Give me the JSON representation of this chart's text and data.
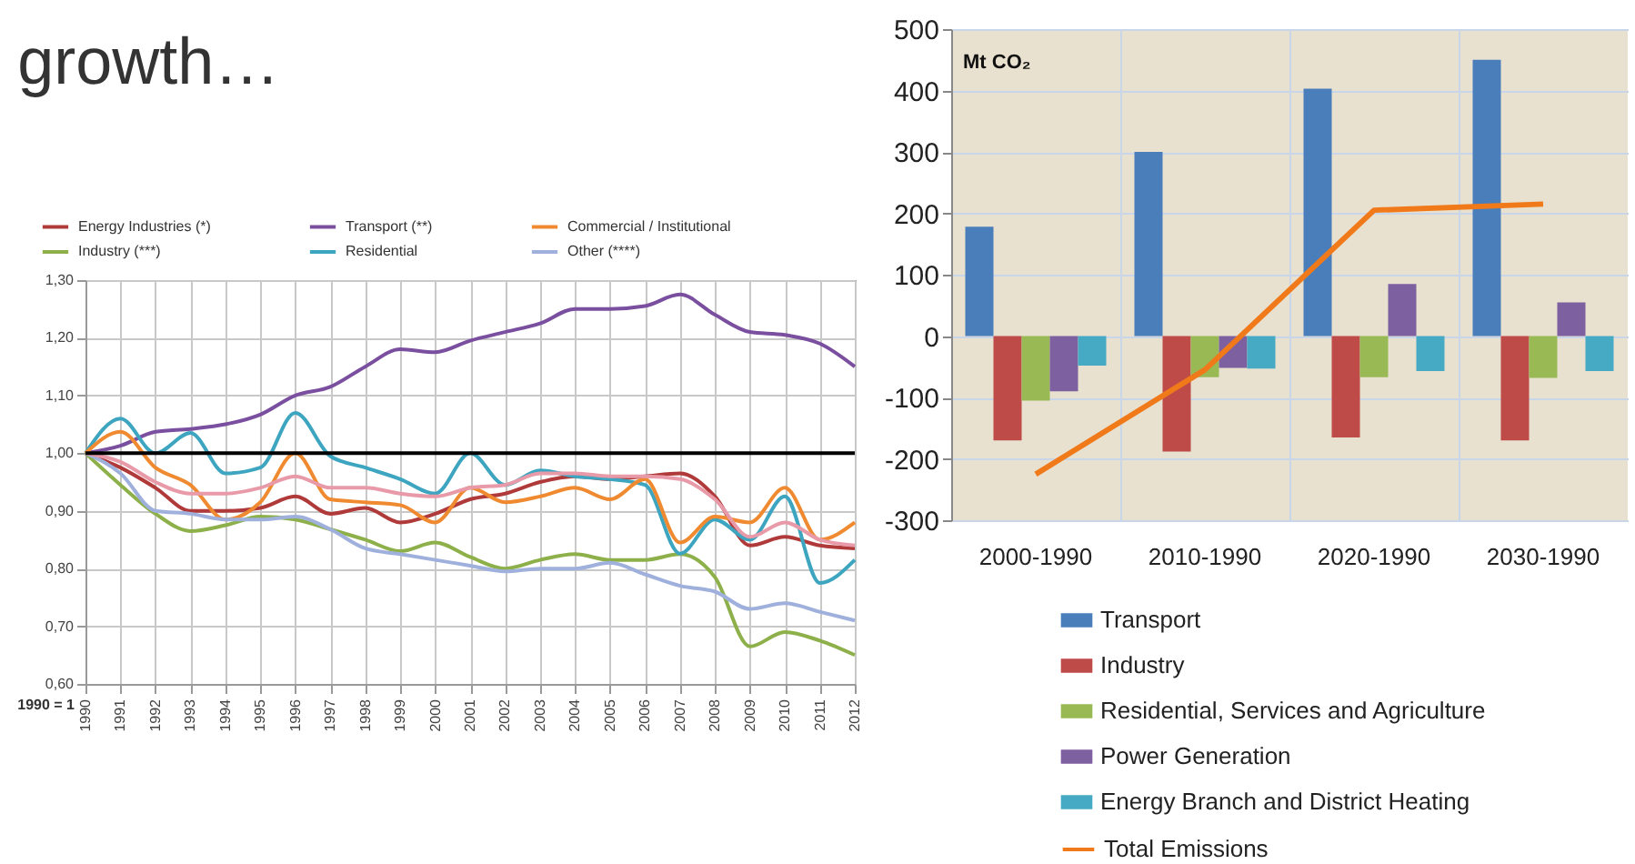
{
  "chart_data": [
    {
      "type": "line",
      "title": "growth…",
      "legend": "top",
      "grid": true,
      "categories": [
        "1990",
        "1991",
        "1992",
        "1993",
        "1994",
        "1995",
        "1996",
        "1997",
        "1998",
        "1999",
        "2000",
        "2001",
        "2002",
        "2003",
        "2004",
        "2005",
        "2006",
        "2007",
        "2008",
        "2009",
        "2010",
        "2011",
        "2012"
      ],
      "ylim": [
        0.6,
        1.3
      ],
      "yticks": [
        {
          "value": 0.6,
          "label": "0,60"
        },
        {
          "value": 0.7,
          "label": "0,70"
        },
        {
          "value": 0.8,
          "label": "0,80"
        },
        {
          "value": 0.9,
          "label": "0,90"
        },
        {
          "value": 1.0,
          "label": "1,00"
        },
        {
          "value": 1.1,
          "label": "1,10"
        },
        {
          "value": 1.2,
          "label": "1,20"
        },
        {
          "value": 1.3,
          "label": "1,30"
        }
      ],
      "series": [
        {
          "name": "Energy Industries (*)",
          "color": "#b03a3a",
          "values": [
            1.0,
            0.975,
            0.94,
            0.9,
            0.9,
            0.905,
            0.925,
            0.895,
            0.905,
            0.88,
            0.895,
            0.92,
            0.93,
            0.95,
            0.96,
            0.955,
            0.96,
            0.965,
            0.925,
            0.84,
            0.855,
            0.84,
            0.835
          ]
        },
        {
          "name": "Industry (***)",
          "color": "#8db04a",
          "values": [
            1.0,
            0.945,
            0.895,
            0.865,
            0.875,
            0.89,
            0.885,
            0.868,
            0.85,
            0.83,
            0.845,
            0.82,
            0.8,
            0.815,
            0.825,
            0.815,
            0.815,
            0.825,
            0.785,
            0.665,
            0.69,
            0.675,
            0.65
          ]
        },
        {
          "name": "Transport (**)",
          "color": "#7a4f9f",
          "values": [
            1.0,
            1.013,
            1.037,
            1.042,
            1.05,
            1.067,
            1.1,
            1.115,
            1.15,
            1.18,
            1.175,
            1.195,
            1.21,
            1.225,
            1.25,
            1.25,
            1.255,
            1.275,
            1.24,
            1.21,
            1.205,
            1.19,
            1.15
          ]
        },
        {
          "name": "Residential",
          "color": "#3ea5c0",
          "values": [
            1.0,
            1.06,
            1.0,
            1.035,
            0.965,
            0.975,
            1.07,
            0.995,
            0.975,
            0.955,
            0.93,
            1.0,
            0.945,
            0.97,
            0.96,
            0.955,
            0.945,
            0.826,
            0.885,
            0.85,
            0.925,
            0.775,
            0.815
          ]
        },
        {
          "name": "Commercial / Institutional",
          "color": "#f08a30",
          "values": [
            1.0,
            1.037,
            0.975,
            0.945,
            0.885,
            0.915,
            1.0,
            0.92,
            0.915,
            0.91,
            0.88,
            0.94,
            0.915,
            0.925,
            0.94,
            0.92,
            0.955,
            0.845,
            0.89,
            0.88,
            0.94,
            0.85,
            0.88
          ]
        },
        {
          "name": "Other (****)",
          "color": "#9fb0dc",
          "values": [
            1.0,
            0.965,
            0.9,
            0.895,
            0.885,
            0.885,
            0.89,
            0.868,
            0.835,
            0.825,
            0.815,
            0.805,
            0.795,
            0.8,
            0.8,
            0.81,
            0.79,
            0.77,
            0.76,
            0.73,
            0.74,
            0.725,
            0.71
          ]
        },
        {
          "color": "#e89aa8",
          "values": [
            1.0,
            0.985,
            0.95,
            0.93,
            0.93,
            0.94,
            0.96,
            0.94,
            0.94,
            0.93,
            0.925,
            0.94,
            0.945,
            0.965,
            0.965,
            0.96,
            0.96,
            0.955,
            0.92,
            0.855,
            0.88,
            0.85,
            0.84
          ]
        }
      ],
      "ref_lines": [
        {
          "axis": "y",
          "value": 1.0,
          "color": "#000000"
        }
      ],
      "annotations": [
        "1990 = 1"
      ]
    },
    {
      "type": "bar",
      "ylabel": "Mt CO₂",
      "legend": "bottom",
      "grid": true,
      "categories": [
        "2000-1990",
        "2010-1990",
        "2020-1990",
        "2030-1990"
      ],
      "ylim": [
        -300,
        500
      ],
      "yticks": [
        -300,
        -200,
        -100,
        0,
        100,
        200,
        300,
        400,
        500
      ],
      "series": [
        {
          "name": "Transport",
          "color": "#4a7ebb",
          "values": [
            178,
            300,
            403,
            450
          ]
        },
        {
          "name": "Industry",
          "color": "#be4b48",
          "values": [
            -170,
            -188,
            -165,
            -170
          ]
        },
        {
          "name": "Residential, Services and Agriculture",
          "color": "#98b954",
          "values": [
            -105,
            -67,
            -67,
            -68
          ]
        },
        {
          "name": "Power Generation",
          "color": "#7d60a0",
          "values": [
            -90,
            -52,
            85,
            55
          ]
        },
        {
          "name": "Energy Branch and District Heating",
          "color": "#46aac5",
          "values": [
            -48,
            -53,
            -57,
            -57
          ]
        },
        {
          "name": "Total Emissions",
          "type": "line",
          "color": "#f07a1a",
          "values": [
            -225,
            -55,
            205,
            215
          ]
        }
      ]
    }
  ]
}
